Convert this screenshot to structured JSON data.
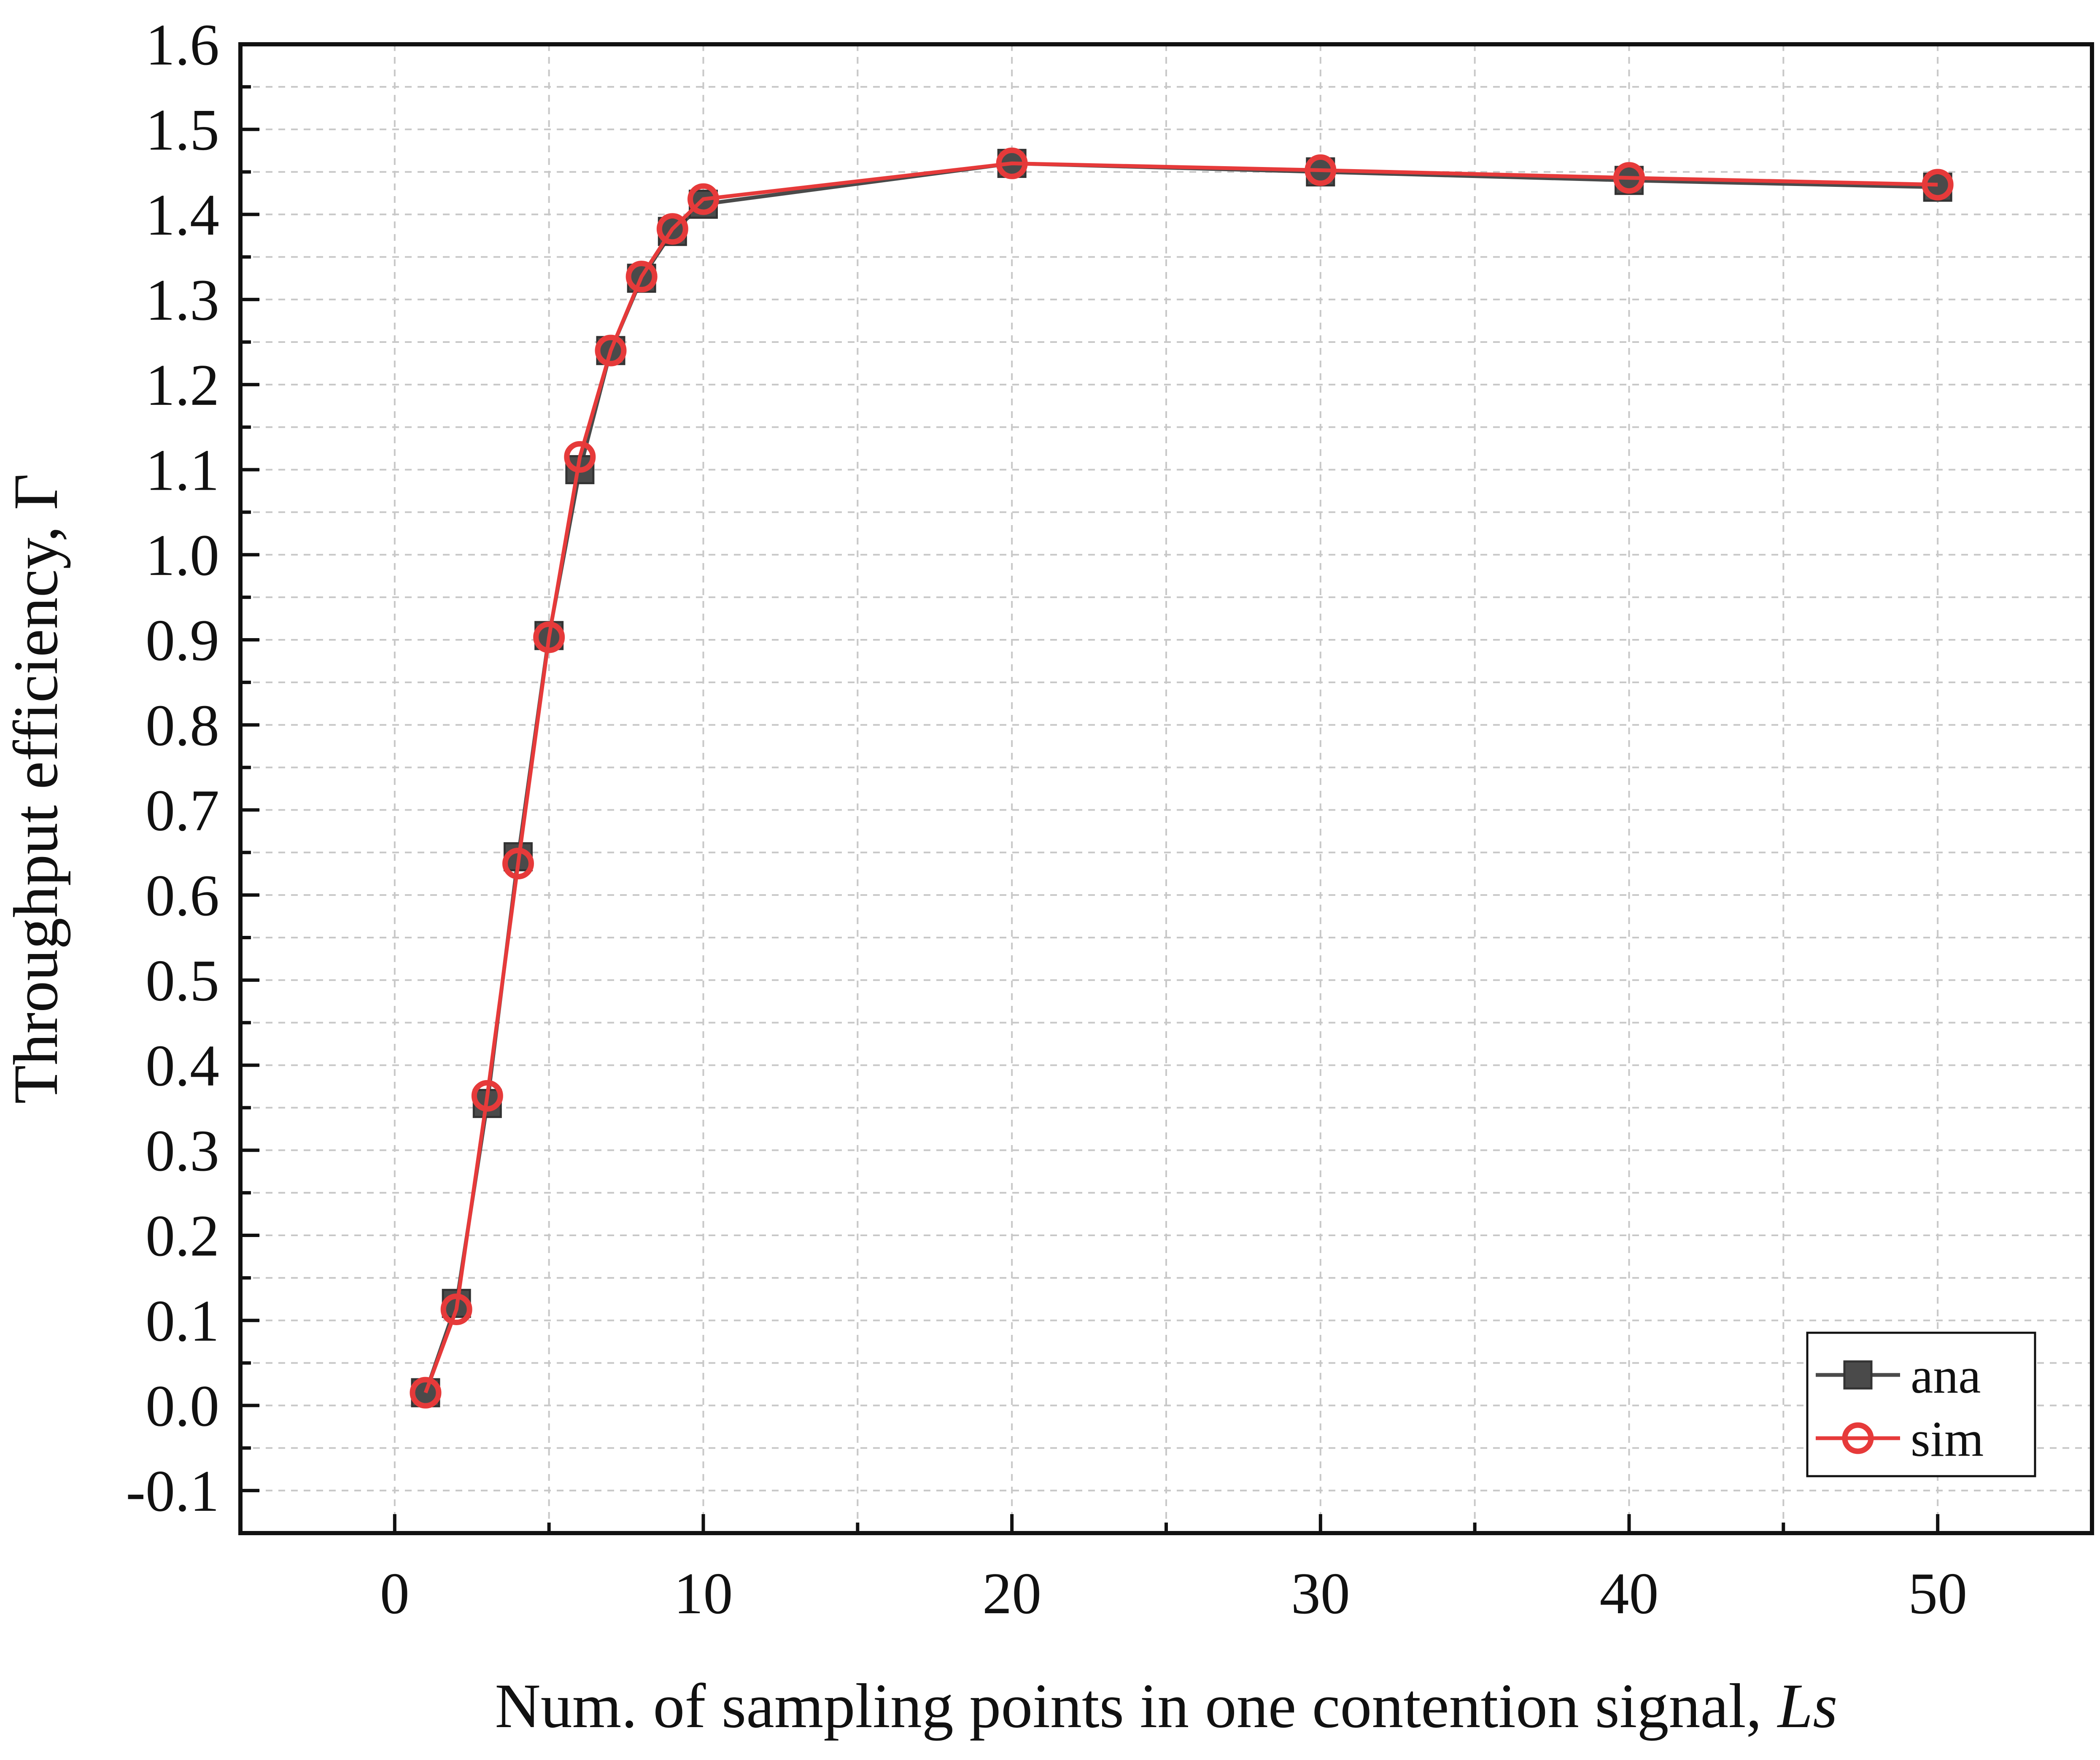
{
  "chart_data": {
    "type": "line",
    "xlabel": "Num. of sampling points in one contention signal,",
    "xlabel_symbol": "Ls",
    "ylabel": "Throughput efficiency, Γ",
    "xlim": [
      -5,
      55
    ],
    "ylim": [
      -0.15,
      1.6
    ],
    "x_major_ticks": [
      0,
      10,
      20,
      30,
      40,
      50
    ],
    "x_tick_labels": [
      "0",
      "10",
      "20",
      "30",
      "40",
      "50"
    ],
    "y_major_ticks": [
      -0.1,
      0.0,
      0.1,
      0.2,
      0.3,
      0.4,
      0.5,
      0.6,
      0.7,
      0.8,
      0.9,
      1.0,
      1.1,
      1.2,
      1.3,
      1.4,
      1.5,
      1.6
    ],
    "y_tick_labels": [
      "-0.1",
      "0.0",
      "0.1",
      "0.2",
      "0.3",
      "0.4",
      "0.5",
      "0.6",
      "0.7",
      "0.8",
      "0.9",
      "1.0",
      "1.1",
      "1.2",
      "1.3",
      "1.4",
      "1.5",
      "1.6"
    ],
    "grid": true,
    "legend_position": "bottom-right",
    "x": [
      1,
      2,
      3,
      4,
      5,
      6,
      7,
      8,
      9,
      10,
      20,
      30,
      40,
      50
    ],
    "series": [
      {
        "name": "ana",
        "marker": "square",
        "color": "#4a4a4a",
        "values": [
          0.015,
          0.12,
          0.355,
          0.645,
          0.905,
          1.1,
          1.24,
          1.325,
          1.38,
          1.412,
          1.46,
          1.45,
          1.44,
          1.432
        ]
      },
      {
        "name": "sim",
        "marker": "circle-open",
        "color": "#e63a3a",
        "values": [
          0.015,
          0.113,
          0.364,
          0.637,
          0.903,
          1.115,
          1.24,
          1.327,
          1.383,
          1.418,
          1.46,
          1.452,
          1.443,
          1.435
        ]
      }
    ]
  }
}
